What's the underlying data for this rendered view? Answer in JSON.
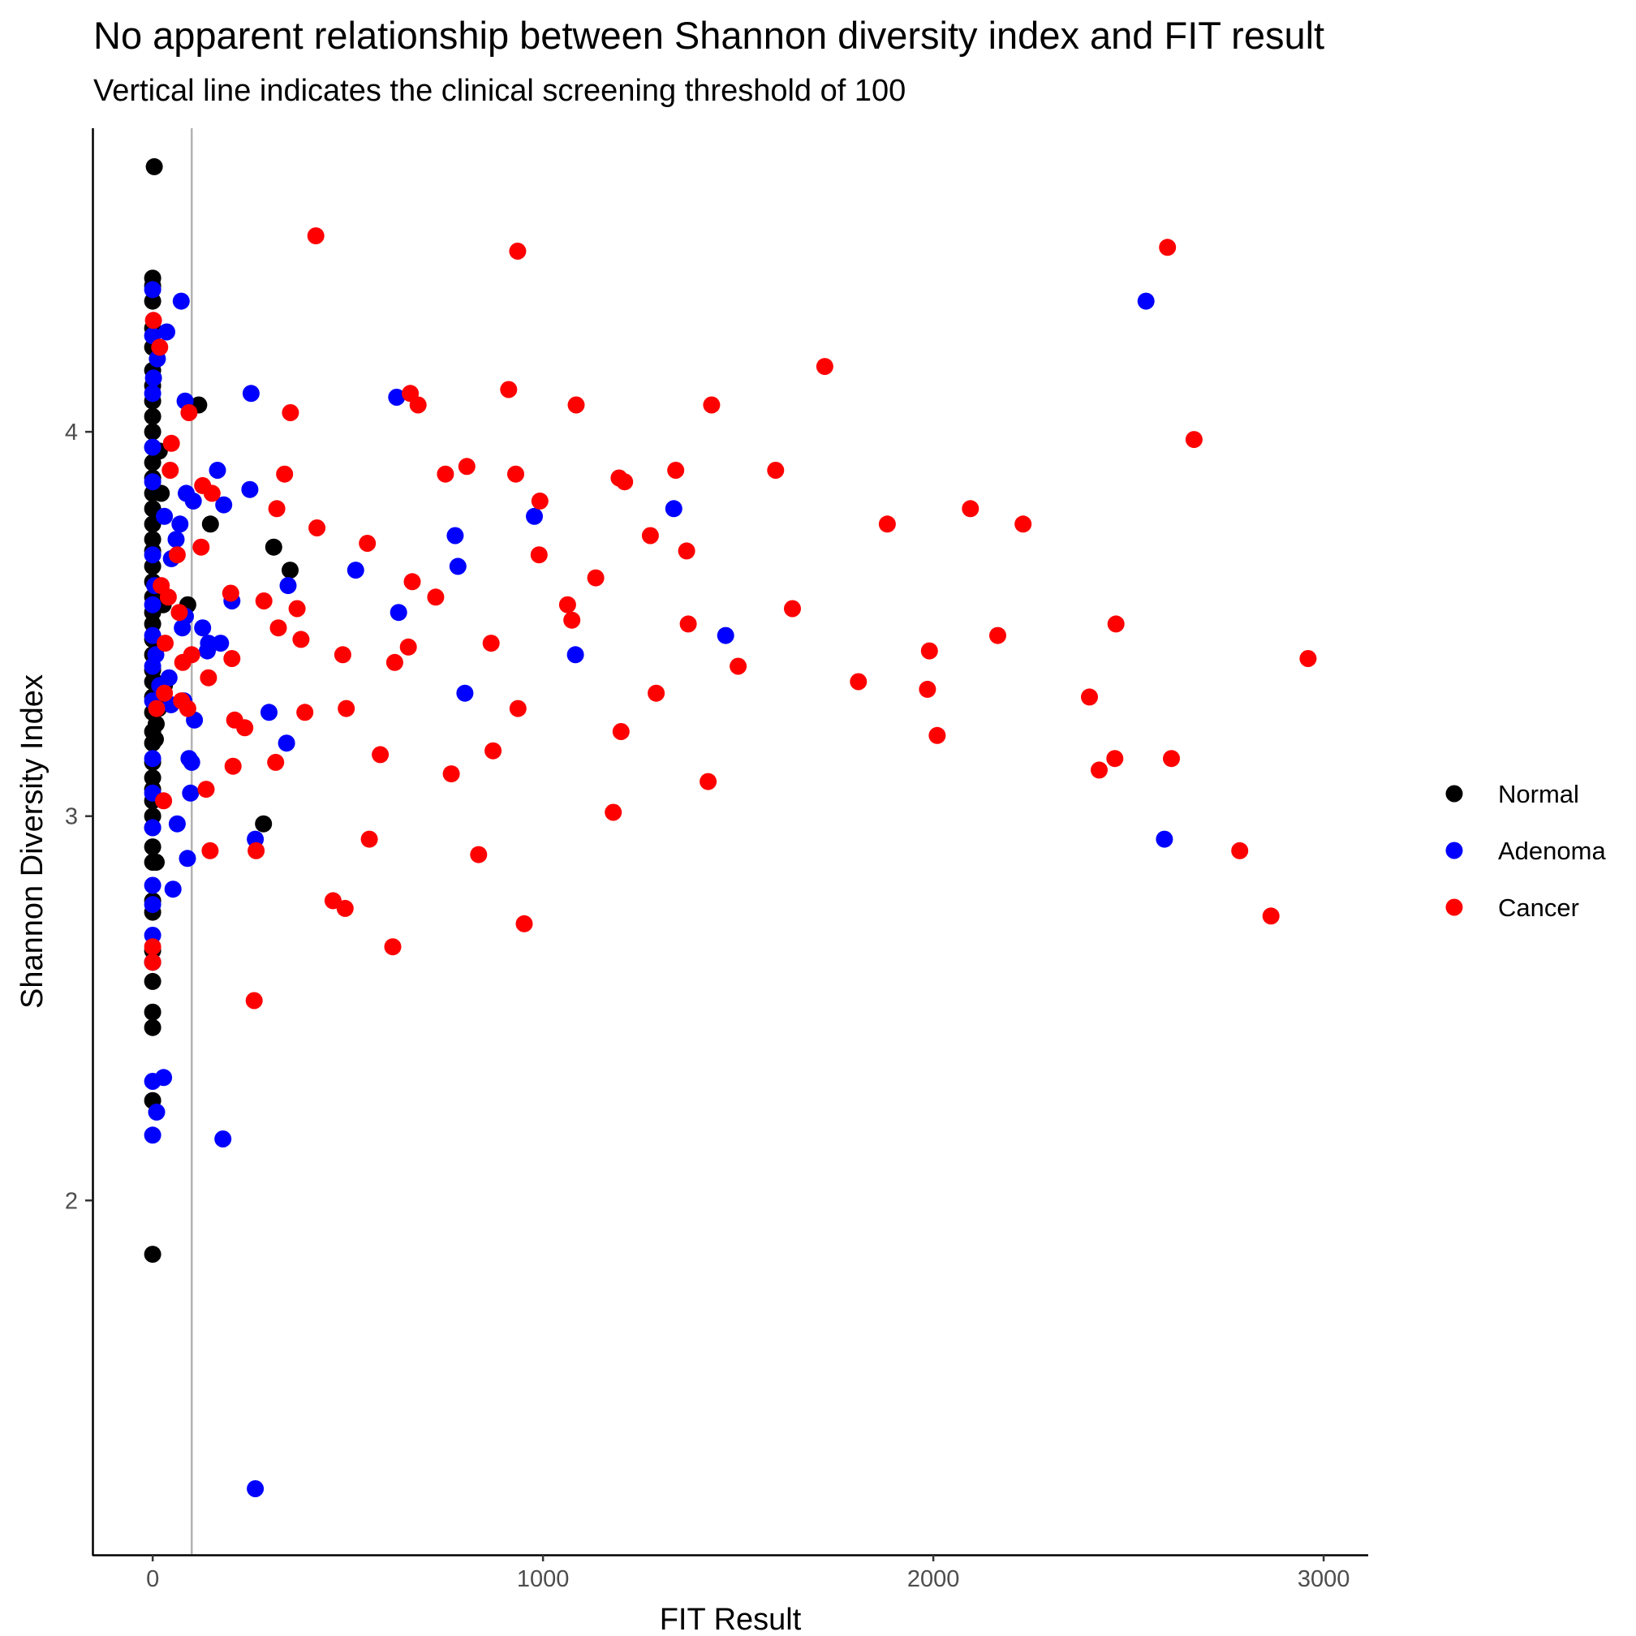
{
  "chart_data": {
    "type": "scatter",
    "title": "No apparent relationship between Shannon diversity index and FIT result",
    "subtitle": "Vertical line indicates the clinical screening threshold of 100",
    "xlabel": "FIT Result",
    "ylabel": "Shannon Diversity Index",
    "xlim": [
      -150,
      3110
    ],
    "ylim": [
      1.08,
      4.79
    ],
    "x_ticks": [
      0,
      1000,
      2000,
      3000
    ],
    "x_tick_labels": [
      "0",
      "1000",
      "2000",
      "3000"
    ],
    "y_ticks": [
      2,
      3,
      4
    ],
    "y_tick_labels": [
      "2",
      "3",
      "4"
    ],
    "vline": {
      "x": 100,
      "color": "#b3b3b3"
    },
    "grid": false,
    "legend_position": "right",
    "series": [
      {
        "name": "Normal",
        "color": "#000000",
        "points": [
          [
            0,
            1.86
          ],
          [
            0,
            2.26
          ],
          [
            0,
            2.45
          ],
          [
            0,
            2.49
          ],
          [
            0,
            2.57
          ],
          [
            0,
            2.62
          ],
          [
            0,
            2.65
          ],
          [
            0,
            2.75
          ],
          [
            0,
            2.78
          ],
          [
            0,
            2.88
          ],
          [
            0,
            2.92
          ],
          [
            0,
            2.97
          ],
          [
            0,
            3.0
          ],
          [
            0,
            3.04
          ],
          [
            0,
            3.07
          ],
          [
            0,
            3.1
          ],
          [
            0,
            3.14
          ],
          [
            0,
            3.19
          ],
          [
            0,
            3.22
          ],
          [
            0,
            3.27
          ],
          [
            0,
            3.31
          ],
          [
            0,
            3.35
          ],
          [
            0,
            3.38
          ],
          [
            0,
            3.42
          ],
          [
            0,
            3.46
          ],
          [
            0,
            3.5
          ],
          [
            0,
            3.53
          ],
          [
            0,
            3.57
          ],
          [
            0,
            3.61
          ],
          [
            0,
            3.65
          ],
          [
            0,
            3.69
          ],
          [
            0,
            3.72
          ],
          [
            0,
            3.76
          ],
          [
            0,
            3.8
          ],
          [
            0,
            3.84
          ],
          [
            0,
            3.88
          ],
          [
            0,
            3.92
          ],
          [
            0,
            3.96
          ],
          [
            0,
            4.0
          ],
          [
            0,
            4.04
          ],
          [
            0,
            4.08
          ],
          [
            0,
            4.12
          ],
          [
            0,
            4.16
          ],
          [
            0,
            4.22
          ],
          [
            0,
            4.27
          ],
          [
            0,
            4.34
          ],
          [
            0,
            4.38
          ],
          [
            0,
            4.4
          ],
          [
            4,
            4.69
          ],
          [
            5,
            3.35
          ],
          [
            7,
            3.2
          ],
          [
            9,
            3.24
          ],
          [
            9,
            2.88
          ],
          [
            12,
            3.45
          ],
          [
            15,
            3.28
          ],
          [
            17,
            3.95
          ],
          [
            22,
            3.84
          ],
          [
            27,
            3.55
          ],
          [
            30,
            3.34
          ],
          [
            90,
            3.55
          ],
          [
            118,
            4.07
          ],
          [
            148,
            3.76
          ],
          [
            310,
            3.7
          ],
          [
            352,
            3.64
          ],
          [
            284,
            2.98
          ]
        ]
      },
      {
        "name": "Adenoma",
        "color": "#0000ff",
        "points": [
          [
            0,
            2.17
          ],
          [
            0,
            2.31
          ],
          [
            0,
            2.62
          ],
          [
            0,
            2.69
          ],
          [
            0,
            2.77
          ],
          [
            0,
            2.82
          ],
          [
            0,
            2.97
          ],
          [
            0,
            3.06
          ],
          [
            0,
            3.15
          ],
          [
            0,
            3.3
          ],
          [
            0,
            3.39
          ],
          [
            0,
            3.47
          ],
          [
            0,
            3.55
          ],
          [
            0,
            3.68
          ],
          [
            0,
            3.87
          ],
          [
            0,
            3.96
          ],
          [
            0,
            4.1
          ],
          [
            0,
            4.25
          ],
          [
            0,
            4.37
          ],
          [
            2,
            4.14
          ],
          [
            5,
            3.6
          ],
          [
            8,
            3.42
          ],
          [
            10,
            2.23
          ],
          [
            12,
            4.19
          ],
          [
            18,
            3.34
          ],
          [
            28,
            2.32
          ],
          [
            30,
            3.78
          ],
          [
            36,
            4.26
          ],
          [
            42,
            3.36
          ],
          [
            47,
            3.29
          ],
          [
            48,
            3.67
          ],
          [
            52,
            2.81
          ],
          [
            60,
            3.72
          ],
          [
            63,
            2.98
          ],
          [
            70,
            3.76
          ],
          [
            73,
            4.34
          ],
          [
            76,
            3.49
          ],
          [
            80,
            3.3
          ],
          [
            83,
            4.08
          ],
          [
            84,
            3.52
          ],
          [
            86,
            3.84
          ],
          [
            89,
            2.89
          ],
          [
            93,
            3.15
          ],
          [
            97,
            3.06
          ],
          [
            100,
            3.14
          ],
          [
            104,
            3.82
          ],
          [
            107,
            3.25
          ],
          [
            128,
            3.49
          ],
          [
            140,
            3.43
          ],
          [
            143,
            3.45
          ],
          [
            166,
            3.9
          ],
          [
            174,
            3.45
          ],
          [
            180,
            2.16
          ],
          [
            182,
            3.81
          ],
          [
            203,
            3.56
          ],
          [
            249,
            3.85
          ],
          [
            252,
            4.1
          ],
          [
            263,
            2.94
          ],
          [
            263,
            1.25
          ],
          [
            298,
            3.27
          ],
          [
            343,
            3.19
          ],
          [
            347,
            3.6
          ],
          [
            520,
            3.64
          ],
          [
            625,
            4.09
          ],
          [
            630,
            3.53
          ],
          [
            775,
            3.73
          ],
          [
            782,
            3.65
          ],
          [
            800,
            3.32
          ],
          [
            978,
            3.78
          ],
          [
            1083,
            3.42
          ],
          [
            1335,
            3.8
          ],
          [
            1468,
            3.47
          ],
          [
            2545,
            4.34
          ],
          [
            2592,
            2.94
          ]
        ]
      },
      {
        "name": "Cancer",
        "color": "#ff0000",
        "points": [
          [
            0,
            2.62
          ],
          [
            0,
            2.66
          ],
          [
            2,
            4.29
          ],
          [
            10,
            3.28
          ],
          [
            18,
            4.22
          ],
          [
            22,
            3.6
          ],
          [
            28,
            3.04
          ],
          [
            30,
            3.32
          ],
          [
            32,
            3.45
          ],
          [
            40,
            3.57
          ],
          [
            45,
            3.9
          ],
          [
            48,
            3.97
          ],
          [
            63,
            3.68
          ],
          [
            68,
            3.53
          ],
          [
            74,
            3.3
          ],
          [
            77,
            3.4
          ],
          [
            90,
            3.28
          ],
          [
            93,
            4.05
          ],
          [
            100,
            3.42
          ],
          [
            124,
            3.7
          ],
          [
            128,
            3.86
          ],
          [
            137,
            3.07
          ],
          [
            143,
            3.36
          ],
          [
            147,
            2.91
          ],
          [
            152,
            3.84
          ],
          [
            200,
            3.58
          ],
          [
            203,
            3.41
          ],
          [
            206,
            3.13
          ],
          [
            210,
            3.25
          ],
          [
            236,
            3.23
          ],
          [
            260,
            2.52
          ],
          [
            265,
            2.91
          ],
          [
            285,
            3.56
          ],
          [
            315,
            3.14
          ],
          [
            318,
            3.8
          ],
          [
            322,
            3.49
          ],
          [
            338,
            3.89
          ],
          [
            353,
            4.05
          ],
          [
            370,
            3.54
          ],
          [
            380,
            3.46
          ],
          [
            390,
            3.27
          ],
          [
            418,
            4.51
          ],
          [
            421,
            3.75
          ],
          [
            462,
            2.78
          ],
          [
            487,
            3.42
          ],
          [
            493,
            2.76
          ],
          [
            496,
            3.28
          ],
          [
            550,
            3.71
          ],
          [
            555,
            2.94
          ],
          [
            583,
            3.16
          ],
          [
            615,
            2.66
          ],
          [
            620,
            3.4
          ],
          [
            655,
            3.44
          ],
          [
            660,
            4.1
          ],
          [
            665,
            3.61
          ],
          [
            680,
            4.07
          ],
          [
            725,
            3.57
          ],
          [
            750,
            3.89
          ],
          [
            765,
            3.11
          ],
          [
            805,
            3.91
          ],
          [
            835,
            2.9
          ],
          [
            867,
            3.45
          ],
          [
            872,
            3.17
          ],
          [
            912,
            4.11
          ],
          [
            930,
            3.89
          ],
          [
            935,
            4.47
          ],
          [
            936,
            3.28
          ],
          [
            952,
            2.72
          ],
          [
            990,
            3.68
          ],
          [
            992,
            3.82
          ],
          [
            1063,
            3.55
          ],
          [
            1074,
            3.51
          ],
          [
            1085,
            4.07
          ],
          [
            1135,
            3.62
          ],
          [
            1180,
            3.01
          ],
          [
            1195,
            3.88
          ],
          [
            1200,
            3.22
          ],
          [
            1209,
            3.87
          ],
          [
            1275,
            3.73
          ],
          [
            1290,
            3.32
          ],
          [
            1340,
            3.9
          ],
          [
            1368,
            3.69
          ],
          [
            1372,
            3.5
          ],
          [
            1423,
            3.09
          ],
          [
            1432,
            4.07
          ],
          [
            1500,
            3.39
          ],
          [
            1596,
            3.9
          ],
          [
            1639,
            3.54
          ],
          [
            1722,
            4.17
          ],
          [
            1808,
            3.35
          ],
          [
            1882,
            3.76
          ],
          [
            1985,
            3.33
          ],
          [
            1990,
            3.43
          ],
          [
            2010,
            3.21
          ],
          [
            2095,
            3.8
          ],
          [
            2165,
            3.47
          ],
          [
            2230,
            3.76
          ],
          [
            2400,
            3.31
          ],
          [
            2425,
            3.12
          ],
          [
            2465,
            3.15
          ],
          [
            2468,
            3.5
          ],
          [
            2600,
            4.48
          ],
          [
            2610,
            3.15
          ],
          [
            2668,
            3.98
          ],
          [
            2785,
            2.91
          ],
          [
            2865,
            2.74
          ],
          [
            2960,
            3.41
          ]
        ]
      }
    ]
  }
}
